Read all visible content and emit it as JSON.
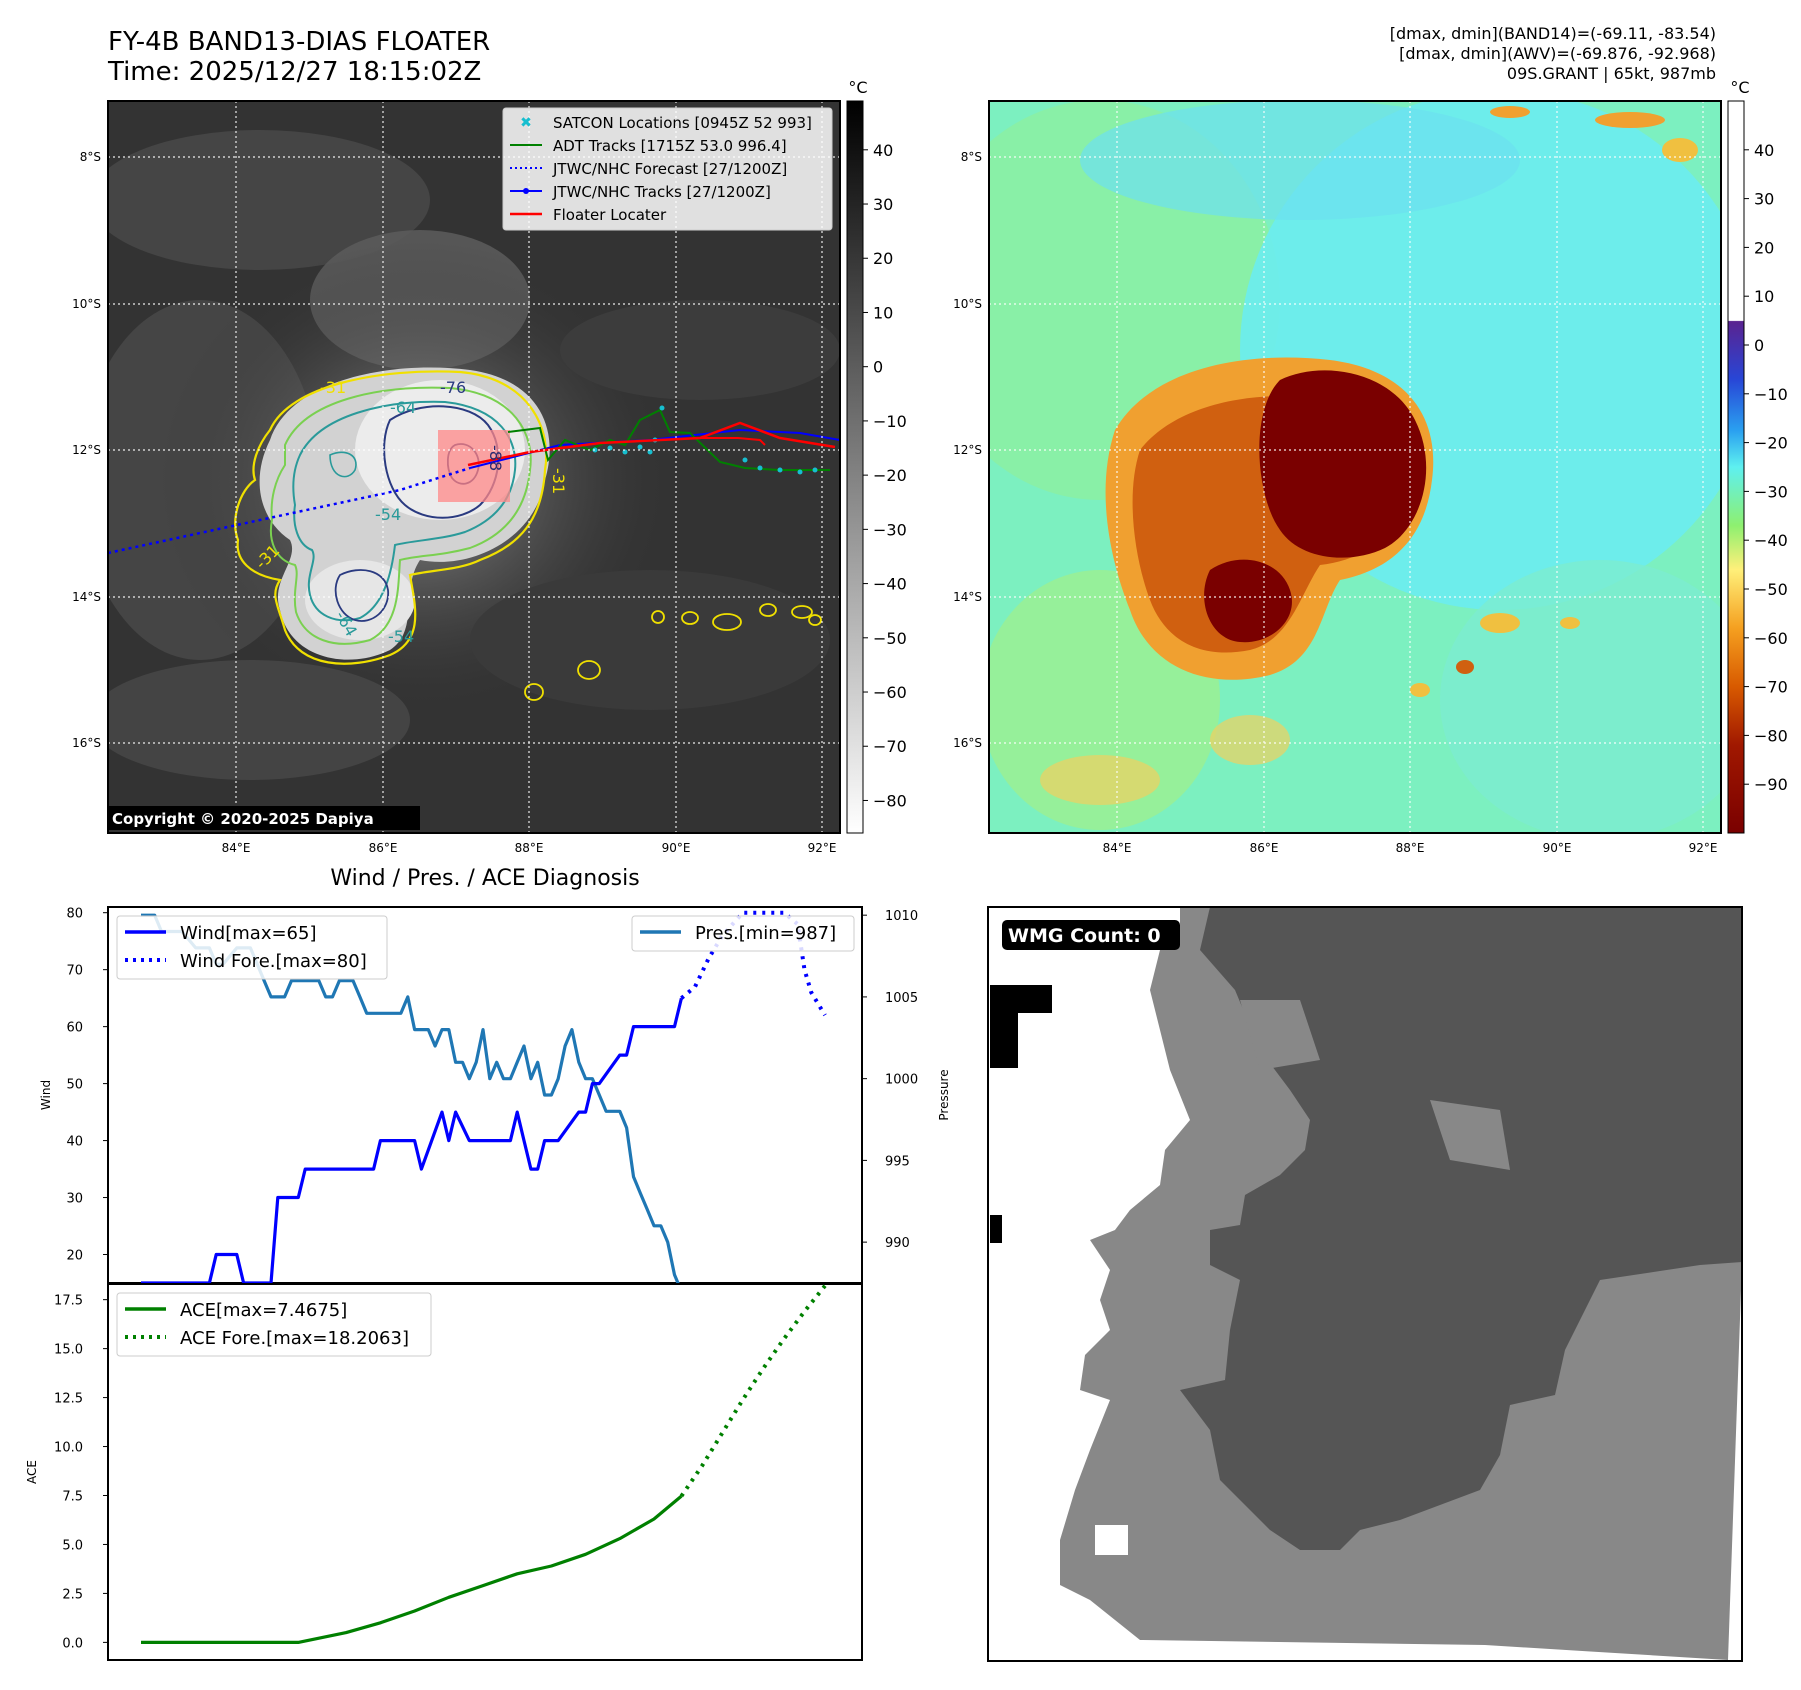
{
  "header": {
    "title": "FY-4B BAND13-DIAS FLOATER",
    "time": "Time: 2025/12/27 18:15:02Z",
    "info1": "[dmax, dmin](BAND14)=(-69.11, -83.54)",
    "info2": "[dmax, dmin](AWV)=(-69.876, -92.968)",
    "info3": "09S.GRANT | 65kt, 987mb"
  },
  "maps": {
    "lat_labels": [
      "8°S",
      "10°S",
      "12°S",
      "14°S",
      "16°S"
    ],
    "lon_labels": [
      "84°E",
      "86°E",
      "88°E",
      "90°E",
      "92°E"
    ],
    "copyright": "Copyright © 2020-2025 Dapiya",
    "unit": "°C",
    "ir_colorbar_ticks": [
      "40",
      "30",
      "20",
      "10",
      "0",
      "−10",
      "−20",
      "−30",
      "−40",
      "−50",
      "−60",
      "−70",
      "−80"
    ],
    "awv_colorbar_ticks": [
      "40",
      "30",
      "20",
      "10",
      "0",
      "−10",
      "−20",
      "−30",
      "−40",
      "−50",
      "−60",
      "−70",
      "−80",
      "−90"
    ],
    "contour_labels": [
      "-31",
      "-64",
      "-76",
      "-88",
      "-54",
      "-31",
      "-31",
      "-64",
      "-54",
      "-31"
    ],
    "legend": [
      {
        "label": "SATCON Locations [0945Z 52 993]",
        "color": "#17becf"
      },
      {
        "label": "ADT Tracks [1715Z 53.0 996.4]",
        "color": "#008000"
      },
      {
        "label": "JTWC/NHC Forecast [27/1200Z]",
        "color": "#0000ff"
      },
      {
        "label": "JTWC/NHC Tracks [27/1200Z]",
        "color": "#0000ff"
      },
      {
        "label": "Floater Locater",
        "color": "#ff0000"
      }
    ]
  },
  "wmg": {
    "label": "WMG Count: 0"
  },
  "chart_data": [
    {
      "type": "line",
      "title": "Wind / Pres. / ACE Diagnosis",
      "ylabel": "Wind",
      "ylim": [
        15,
        81
      ],
      "yticks": [
        20,
        30,
        40,
        50,
        60,
        70,
        80
      ],
      "series": [
        {
          "name": "Wind[max=65]",
          "color": "#0000ff",
          "style": "solid",
          "x": [
            0,
            10,
            11,
            14,
            15,
            19,
            20,
            23,
            24,
            28,
            29,
            34,
            35,
            40,
            41,
            44,
            45,
            46,
            48,
            49,
            54,
            55,
            56,
            57,
            58,
            59,
            60,
            61,
            64,
            65,
            66,
            67,
            70,
            71,
            72,
            73,
            78,
            79
          ],
          "values": [
            15,
            15,
            20,
            20,
            15,
            15,
            30,
            30,
            35,
            35,
            35,
            35,
            40,
            40,
            35,
            45,
            40,
            45,
            40,
            40,
            40,
            45,
            40,
            35,
            35,
            40,
            40,
            40,
            45,
            45,
            50,
            50,
            55,
            55,
            60,
            60,
            60,
            65
          ]
        },
        {
          "name": "Wind Fore.[max=80]",
          "color": "#0000ff",
          "style": "dotted",
          "x": [
            79,
            81,
            83,
            85,
            88,
            91,
            94,
            96,
            97,
            98,
            100
          ],
          "values": [
            65,
            67,
            72,
            76,
            80,
            80,
            80,
            78,
            70,
            66,
            62
          ]
        }
      ],
      "secondary": {
        "ylabel": "Pressure",
        "ylim": [
          987.5,
          1010.5
        ],
        "yticks": [
          990,
          995,
          1000,
          1005,
          1010
        ],
        "series": [
          {
            "name": "Pres.[min=987]",
            "color": "#1f77b4",
            "style": "solid",
            "x": [
              0,
              2,
              3,
              6,
              8,
              10,
              11,
              12,
              14,
              16,
              17,
              18,
              19,
              20,
              21,
              22,
              24,
              25,
              26,
              27,
              28,
              29,
              30,
              31,
              32,
              33,
              34,
              35,
              36,
              37,
              38,
              39,
              40,
              41,
              42,
              43,
              44,
              45,
              46,
              47,
              48,
              49,
              50,
              51,
              52,
              53,
              54,
              55,
              56,
              57,
              58,
              59,
              60,
              61,
              62,
              63,
              64,
              65,
              66,
              67,
              68,
              69,
              70,
              71,
              72,
              73,
              74,
              75,
              76,
              77,
              78,
              79
            ],
            "values": [
              1010,
              1010,
              1009,
              1009,
              1008,
              1008,
              1007,
              1007,
              1008,
              1008,
              1007,
              1006,
              1005,
              1005,
              1005,
              1006,
              1006,
              1006,
              1006,
              1005,
              1005,
              1006,
              1006,
              1006,
              1005,
              1004,
              1004,
              1004,
              1004,
              1004,
              1004,
              1005,
              1003,
              1003,
              1003,
              1002,
              1003,
              1003,
              1001,
              1001,
              1000,
              1001,
              1003,
              1000,
              1001,
              1000,
              1000,
              1001,
              1002,
              1000,
              1001,
              999,
              999,
              1000,
              1002,
              1003,
              1001,
              1000,
              1000,
              999,
              998,
              998,
              998,
              997,
              994,
              993,
              992,
              991,
              991,
              990,
              988,
              987
            ]
          }
        ]
      }
    },
    {
      "type": "line",
      "ylabel": "ACE",
      "ylim": [
        -0.9,
        18.3
      ],
      "yticks": [
        0.0,
        2.5,
        5.0,
        7.5,
        10.0,
        12.5,
        15.0,
        17.5
      ],
      "series": [
        {
          "name": "ACE[max=7.4675]",
          "color": "#008000",
          "style": "solid",
          "x": [
            0,
            10,
            20,
            23,
            30,
            35,
            40,
            45,
            50,
            55,
            60,
            65,
            70,
            75,
            79
          ],
          "values": [
            0,
            0,
            0,
            0,
            0.5,
            1.0,
            1.6,
            2.3,
            2.9,
            3.5,
            3.9,
            4.5,
            5.3,
            6.3,
            7.4675
          ]
        },
        {
          "name": "ACE Fore.[max=18.2063]",
          "color": "#008000",
          "style": "dotted",
          "x": [
            79,
            82,
            85,
            88,
            91,
            94,
            97,
            100
          ],
          "values": [
            7.4675,
            9.0,
            10.7,
            12.4,
            14.0,
            15.5,
            16.9,
            18.2063
          ]
        }
      ]
    }
  ]
}
